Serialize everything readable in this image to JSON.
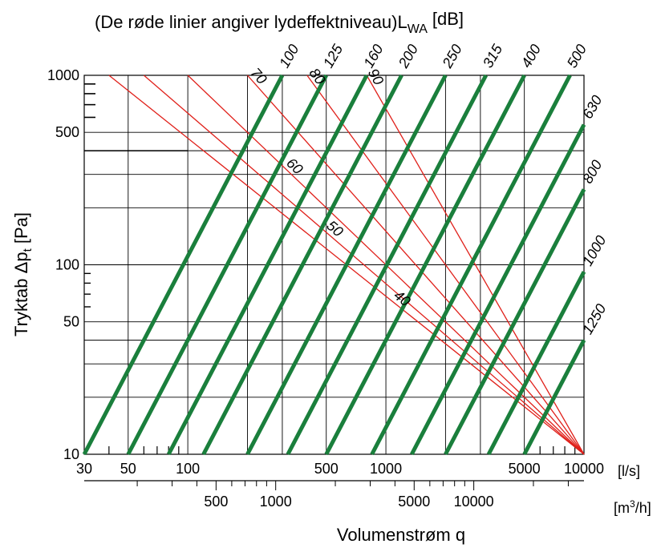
{
  "chart_data": {
    "type": "line",
    "title": "(De røde linier angiver lydeffektniveau)",
    "title_symbol": "L",
    "title_symbol_sub": "WA",
    "title_unit": "[dB]",
    "ylabel_text": "Tryktab ",
    "ylabel_symbol": "Δp",
    "ylabel_sub": "t",
    "ylabel_unit": " [Pa]",
    "xlabel": "Volumenstrøm q",
    "x_unit_primary": "[l/s]",
    "x_unit_secondary_base": "[m",
    "x_unit_secondary_sup": "3",
    "x_unit_secondary_end": "/h]",
    "x_scale": "log",
    "y_scale": "log",
    "xlim": [
      30,
      10000
    ],
    "ylim": [
      10,
      1000
    ],
    "grid": true,
    "x_tick_labels": [
      "30",
      "50",
      "100",
      "500",
      "1000",
      "5000",
      "10000"
    ],
    "x_secondary_tick_labels": [
      "500",
      "1000",
      "5000",
      "10000"
    ],
    "y_tick_labels": [
      "10",
      "50",
      "100",
      "500",
      "1000"
    ],
    "green_lines": {
      "name": "duct size",
      "labels": [
        "100",
        "125",
        "160",
        "200",
        "250",
        "315",
        "400",
        "500",
        "630",
        "800",
        "1000",
        "1250"
      ],
      "x_at_y10": [
        30,
        50,
        80,
        120,
        200,
        320,
        500,
        850,
        1350,
        2000,
        3300,
        5000
      ]
    },
    "red_lines": {
      "name": "sound power level",
      "labels": [
        "40",
        "50",
        "60",
        "70",
        "80",
        "90"
      ],
      "lines": [
        {
          "x_at_y1000": 40,
          "x_at_y10": 10000
        },
        {
          "x_at_y1000": 60,
          "x_at_y10": 10000
        },
        {
          "x_at_y1000": 100,
          "x_at_y10": 10000
        },
        {
          "x_at_y1000": 200,
          "x_at_y10": 10000
        },
        {
          "x_at_y1000": 400,
          "x_at_y10": 10000
        },
        {
          "x_at_y1000": 800,
          "x_at_y10": 10000
        }
      ]
    },
    "colors": {
      "green": "#1a7f3c",
      "red": "#e0201a",
      "grid": "#000000"
    }
  }
}
